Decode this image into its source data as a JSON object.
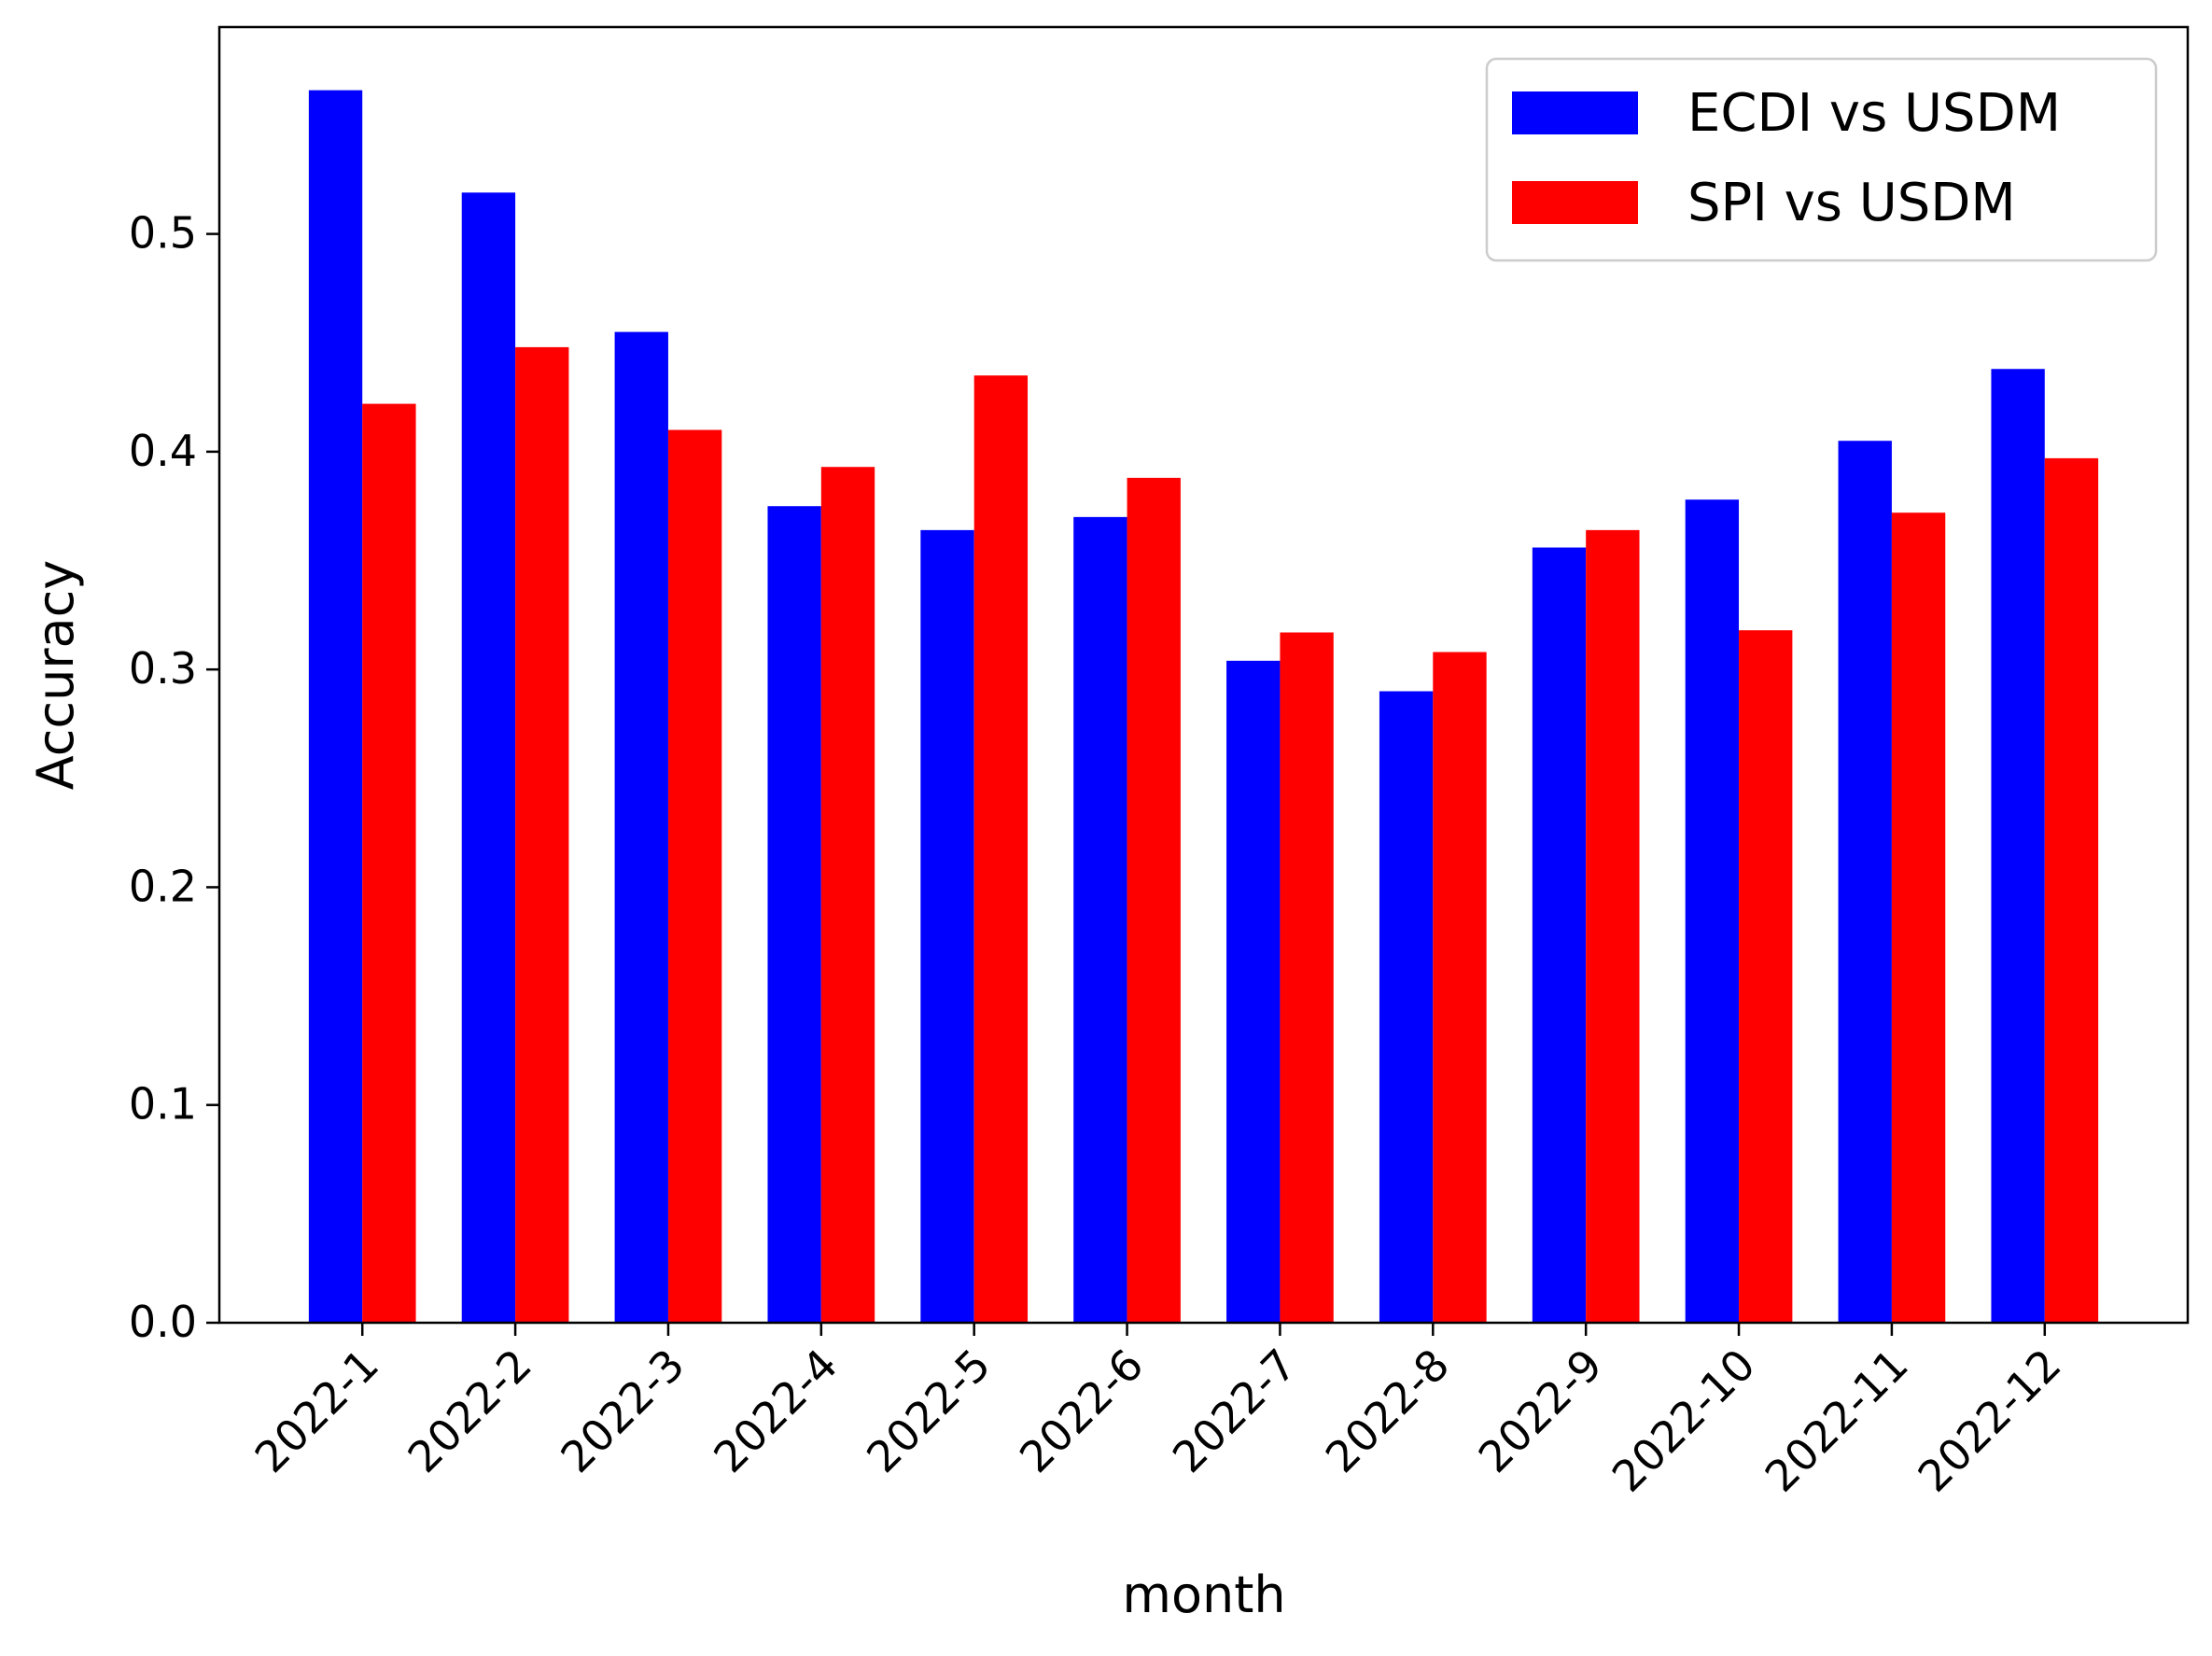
{
  "chart_data": {
    "type": "bar",
    "title": "",
    "xlabel": "month",
    "ylabel": "Accuracy",
    "categories": [
      "2022-1",
      "2022-2",
      "2022-3",
      "2022-4",
      "2022-5",
      "2022-6",
      "2022-7",
      "2022-8",
      "2022-9",
      "2022-10",
      "2022-11",
      "2022-12"
    ],
    "series": [
      {
        "name": "ECDI vs USDM",
        "color": "#0000ff",
        "values": [
          0.566,
          0.519,
          0.455,
          0.375,
          0.364,
          0.37,
          0.304,
          0.29,
          0.356,
          0.378,
          0.405,
          0.438
        ]
      },
      {
        "name": "SPI vs USDM",
        "color": "#ff0000",
        "values": [
          0.422,
          0.448,
          0.41,
          0.393,
          0.435,
          0.388,
          0.317,
          0.308,
          0.364,
          0.318,
          0.372,
          0.397
        ]
      }
    ],
    "ylim": [
      0.0,
      0.595
    ],
    "yticks": [
      0.0,
      0.1,
      0.2,
      0.3,
      0.4,
      0.5
    ],
    "ytick_labels": [
      "0.0",
      "0.1",
      "0.2",
      "0.3",
      "0.4",
      "0.5"
    ],
    "grid": false,
    "legend_position": "top-right"
  }
}
